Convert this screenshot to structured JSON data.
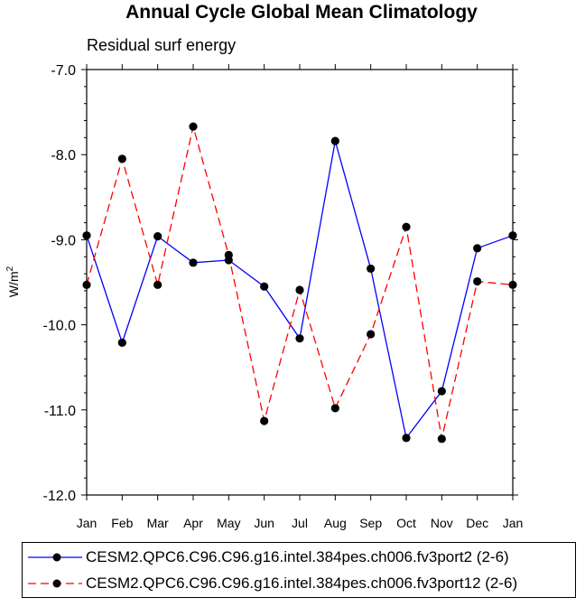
{
  "chart_data": {
    "type": "line",
    "title": "Annual Cycle Global Mean Climatology",
    "subtitle": "Residual surf energy",
    "ylabel": "W/m",
    "ylabel_superscript": "2",
    "categories": [
      "Jan",
      "Feb",
      "Mar",
      "Apr",
      "May",
      "Jun",
      "Jul",
      "Aug",
      "Sep",
      "Oct",
      "Nov",
      "Dec",
      "Jan"
    ],
    "ylim": [
      -12.0,
      -7.0
    ],
    "yticks": [
      "-7.0",
      "-8.0",
      "-9.0",
      "-10.0",
      "-11.0",
      "-12.0"
    ],
    "ytick_values": [
      -7.0,
      -8.0,
      -9.0,
      -10.0,
      -11.0,
      -12.0
    ],
    "series": [
      {
        "name": "CESM2.QPC6.C96.C96.g16.intel.384pes.ch006.fv3port2 (2-6)",
        "color": "#0000ff",
        "dash": "solid",
        "values": [
          -8.95,
          -10.21,
          -8.96,
          -9.27,
          -9.24,
          -9.55,
          -10.16,
          -7.84,
          -9.34,
          -11.33,
          -10.78,
          -9.1,
          -8.95
        ]
      },
      {
        "name": "CESM2.QPC6.C96.C96.g16.intel.384pes.ch006.fv3port12 (2-6)",
        "color": "#ff0000",
        "dash": "dashed",
        "values": [
          -9.53,
          -8.05,
          -9.53,
          -7.67,
          -9.18,
          -11.13,
          -9.59,
          -10.98,
          -10.11,
          -8.85,
          -11.34,
          -9.49,
          -9.53
        ]
      }
    ]
  }
}
